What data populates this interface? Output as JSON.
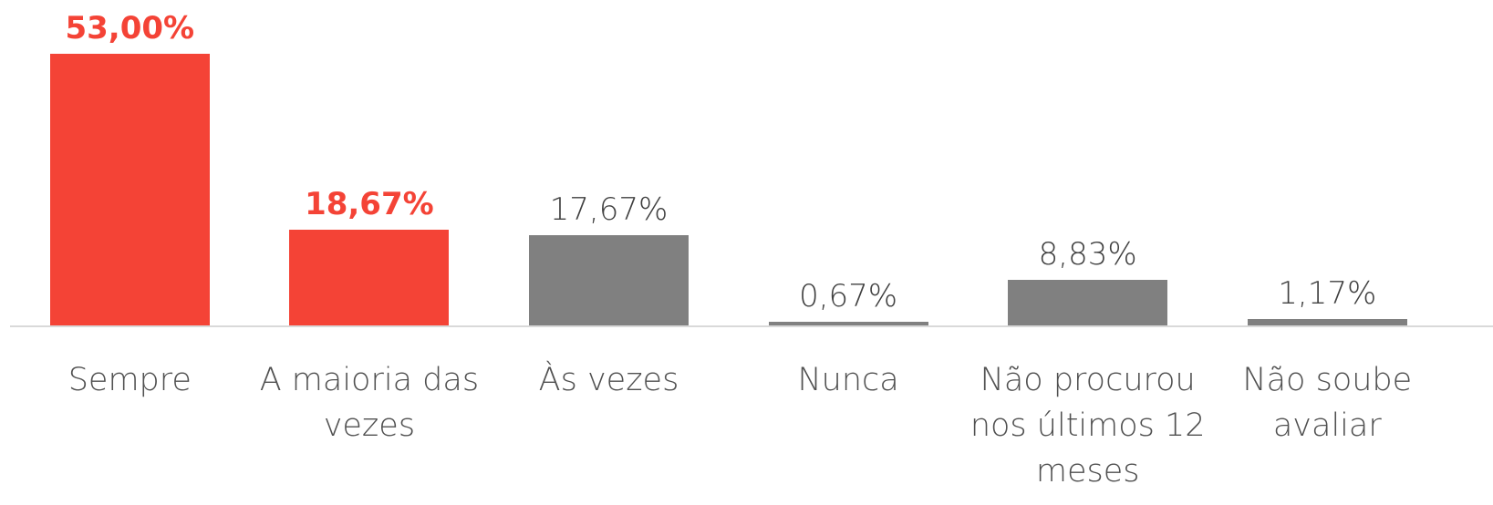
{
  "chart_data": {
    "type": "bar",
    "categories": [
      "Sempre",
      "A maioria das vezes",
      "Às vezes",
      "Nunca",
      "Não procurou nos últimos 12 meses",
      "Não soube avaliar"
    ],
    "values": [
      53.0,
      18.67,
      17.67,
      0.67,
      8.83,
      1.17
    ],
    "value_labels": [
      "53,00%",
      "18,67%",
      "17,67%",
      "0,67%",
      "8,83%",
      "1,17%"
    ],
    "colors": [
      "#f44336",
      "#f44336",
      "#808080",
      "#808080",
      "#808080",
      "#808080"
    ],
    "highlight_color": "#f44336"
  }
}
